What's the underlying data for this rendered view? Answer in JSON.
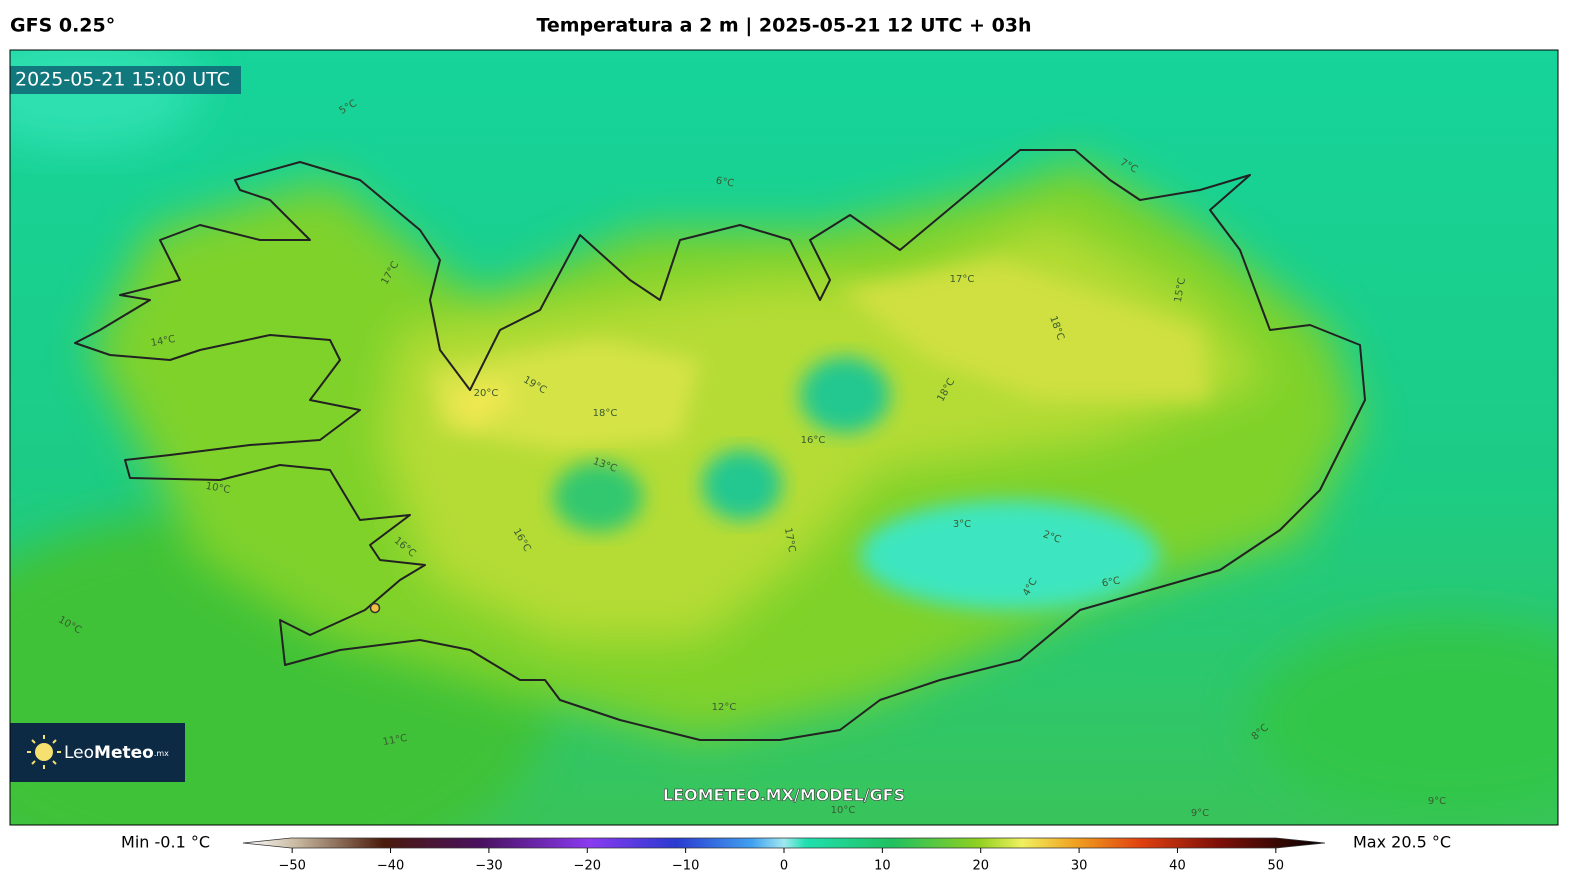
{
  "header": {
    "model": "GFS 0.25°",
    "title": "Temperatura a 2 m | 2025-05-21 12 UTC + 03h"
  },
  "map": {
    "valid_time": "2025-05-21 15:00 UTC",
    "watermark": "LEOMETEO.MX/MODEL/GFS",
    "logo": {
      "leo": "Leo",
      "meteo": "Meteo",
      "tld": ".mx"
    },
    "contour_labels": [
      "20°C",
      "19°C",
      "18°C",
      "17°C",
      "18°C",
      "16°C",
      "13°C",
      "16°C",
      "17°C",
      "3°C",
      "2°C",
      "6°C",
      "14°C",
      "10°C",
      "10°C",
      "11°C",
      "12°C",
      "9°C",
      "9°C",
      "10°C",
      "8°C",
      "5°C",
      "6°C",
      "7°C",
      "4°C",
      "17°C",
      "16°C",
      "18°C",
      "15°C"
    ]
  },
  "colorbar": {
    "min_label": "Min -0.1 °C",
    "max_label": "Max 20.5 °C",
    "lim": [
      -55,
      55
    ],
    "ticks": [
      {
        "value": -50,
        "label": "−50"
      },
      {
        "value": -40,
        "label": "−40"
      },
      {
        "value": -30,
        "label": "−30"
      },
      {
        "value": -20,
        "label": "−20"
      },
      {
        "value": -10,
        "label": "−10"
      },
      0,
      10,
      20,
      30,
      40,
      50
    ]
  }
}
